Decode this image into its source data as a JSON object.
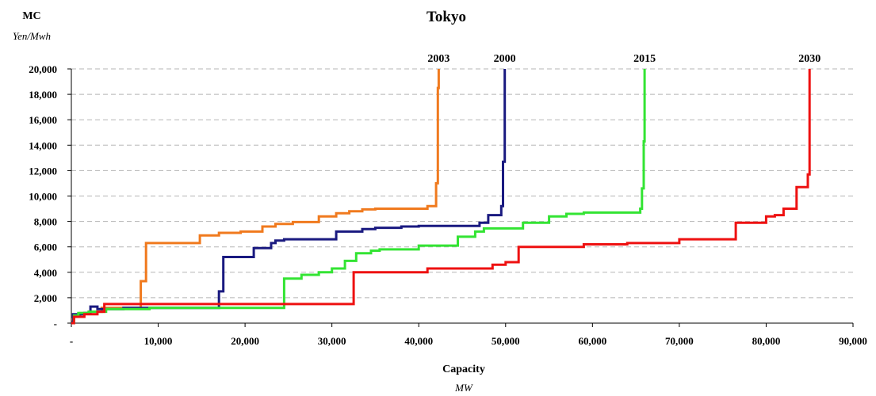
{
  "chart_data": {
    "type": "line",
    "title": "Tokyo",
    "xlabel": "Capacity",
    "xunit": "MW",
    "ylabel": "MC",
    "yunit": "Yen/Mwh",
    "xlim": [
      0,
      90000
    ],
    "ylim": [
      0,
      20000
    ],
    "xticks": [
      0,
      10000,
      20000,
      30000,
      40000,
      50000,
      60000,
      70000,
      80000,
      90000
    ],
    "xtick_labels": [
      "-",
      "10,000",
      "20,000",
      "30,000",
      "40,000",
      "50,000",
      "60,000",
      "70,000",
      "80,000",
      "90,000"
    ],
    "yticks": [
      0,
      2000,
      4000,
      6000,
      8000,
      10000,
      12000,
      14000,
      16000,
      18000,
      20000
    ],
    "ytick_labels": [
      "-",
      "2,000",
      "4,000",
      "6,000",
      "8,000",
      "10,000",
      "12,000",
      "14,000",
      "16,000",
      "18,000",
      "20,000"
    ],
    "grid": "horizontal dashed",
    "series": [
      {
        "name": "2003",
        "color": "#f07a1e",
        "points": [
          [
            0,
            300
          ],
          [
            300,
            300
          ],
          [
            300,
            600
          ],
          [
            1000,
            600
          ],
          [
            1000,
            800
          ],
          [
            2000,
            800
          ],
          [
            2000,
            900
          ],
          [
            3500,
            900
          ],
          [
            3500,
            1200
          ],
          [
            8000,
            1200
          ],
          [
            8000,
            3300
          ],
          [
            8600,
            3300
          ],
          [
            8600,
            6300
          ],
          [
            14800,
            6300
          ],
          [
            14800,
            6900
          ],
          [
            17000,
            6900
          ],
          [
            17000,
            7100
          ],
          [
            19500,
            7100
          ],
          [
            19500,
            7200
          ],
          [
            22000,
            7200
          ],
          [
            22000,
            7600
          ],
          [
            23500,
            7600
          ],
          [
            23500,
            7800
          ],
          [
            25500,
            7800
          ],
          [
            25500,
            7950
          ],
          [
            28500,
            7950
          ],
          [
            28500,
            8400
          ],
          [
            30500,
            8400
          ],
          [
            30500,
            8650
          ],
          [
            32000,
            8650
          ],
          [
            32000,
            8800
          ],
          [
            33500,
            8800
          ],
          [
            33500,
            8950
          ],
          [
            35000,
            8950
          ],
          [
            35000,
            9000
          ],
          [
            41000,
            9000
          ],
          [
            41000,
            9200
          ],
          [
            42000,
            9200
          ],
          [
            42000,
            11000
          ],
          [
            42200,
            11000
          ],
          [
            42200,
            18500
          ],
          [
            42300,
            18500
          ],
          [
            42300,
            20000
          ]
        ]
      },
      {
        "name": "2000",
        "color": "#1a1a80",
        "points": [
          [
            0,
            0
          ],
          [
            200,
            0
          ],
          [
            200,
            700
          ],
          [
            1500,
            700
          ],
          [
            1500,
            800
          ],
          [
            2200,
            800
          ],
          [
            2200,
            1300
          ],
          [
            3000,
            1300
          ],
          [
            3000,
            1100
          ],
          [
            6000,
            1100
          ],
          [
            6000,
            1200
          ],
          [
            17000,
            1200
          ],
          [
            17000,
            2500
          ],
          [
            17500,
            2500
          ],
          [
            17500,
            5200
          ],
          [
            21000,
            5200
          ],
          [
            21000,
            5900
          ],
          [
            23000,
            5900
          ],
          [
            23000,
            6300
          ],
          [
            23500,
            6300
          ],
          [
            23500,
            6500
          ],
          [
            24500,
            6500
          ],
          [
            24500,
            6600
          ],
          [
            30500,
            6600
          ],
          [
            30500,
            7200
          ],
          [
            33500,
            7200
          ],
          [
            33500,
            7400
          ],
          [
            35000,
            7400
          ],
          [
            35000,
            7500
          ],
          [
            38000,
            7500
          ],
          [
            38000,
            7600
          ],
          [
            40000,
            7600
          ],
          [
            40000,
            7650
          ],
          [
            47000,
            7650
          ],
          [
            47000,
            7900
          ],
          [
            48000,
            7900
          ],
          [
            48000,
            8500
          ],
          [
            49500,
            8500
          ],
          [
            49500,
            9200
          ],
          [
            49700,
            9200
          ],
          [
            49700,
            12700
          ],
          [
            49900,
            12700
          ],
          [
            49900,
            20000
          ]
        ]
      },
      {
        "name": "2015",
        "color": "#33e433",
        "points": [
          [
            0,
            0
          ],
          [
            300,
            0
          ],
          [
            300,
            600
          ],
          [
            800,
            600
          ],
          [
            800,
            800
          ],
          [
            2000,
            800
          ],
          [
            2000,
            900
          ],
          [
            4000,
            900
          ],
          [
            4000,
            1100
          ],
          [
            9000,
            1100
          ],
          [
            9000,
            1200
          ],
          [
            24500,
            1200
          ],
          [
            24500,
            3500
          ],
          [
            26500,
            3500
          ],
          [
            26500,
            3800
          ],
          [
            28500,
            3800
          ],
          [
            28500,
            4000
          ],
          [
            30000,
            4000
          ],
          [
            30000,
            4300
          ],
          [
            31500,
            4300
          ],
          [
            31500,
            4900
          ],
          [
            32800,
            4900
          ],
          [
            32800,
            5500
          ],
          [
            34500,
            5500
          ],
          [
            34500,
            5700
          ],
          [
            35500,
            5700
          ],
          [
            35500,
            5800
          ],
          [
            40000,
            5800
          ],
          [
            40000,
            6100
          ],
          [
            44500,
            6100
          ],
          [
            44500,
            6800
          ],
          [
            46500,
            6800
          ],
          [
            46500,
            7200
          ],
          [
            47500,
            7200
          ],
          [
            47500,
            7450
          ],
          [
            52000,
            7450
          ],
          [
            52000,
            7900
          ],
          [
            55000,
            7900
          ],
          [
            55000,
            8400
          ],
          [
            57000,
            8400
          ],
          [
            57000,
            8600
          ],
          [
            59000,
            8600
          ],
          [
            59000,
            8700
          ],
          [
            65500,
            8700
          ],
          [
            65500,
            9000
          ],
          [
            65700,
            9000
          ],
          [
            65700,
            10600
          ],
          [
            65900,
            10600
          ],
          [
            65900,
            14300
          ],
          [
            66000,
            14300
          ],
          [
            66000,
            20000
          ]
        ]
      },
      {
        "name": "2030",
        "color": "#ee1111",
        "points": [
          [
            0,
            0
          ],
          [
            300,
            0
          ],
          [
            300,
            500
          ],
          [
            1500,
            500
          ],
          [
            1500,
            700
          ],
          [
            3000,
            700
          ],
          [
            3000,
            900
          ],
          [
            3800,
            900
          ],
          [
            3800,
            1500
          ],
          [
            32500,
            1500
          ],
          [
            32500,
            4000
          ],
          [
            41000,
            4000
          ],
          [
            41000,
            4300
          ],
          [
            48500,
            4300
          ],
          [
            48500,
            4600
          ],
          [
            50000,
            4600
          ],
          [
            50000,
            4800
          ],
          [
            51500,
            4800
          ],
          [
            51500,
            6000
          ],
          [
            59000,
            6000
          ],
          [
            59000,
            6200
          ],
          [
            64000,
            6200
          ],
          [
            64000,
            6300
          ],
          [
            70000,
            6300
          ],
          [
            70000,
            6600
          ],
          [
            76500,
            6600
          ],
          [
            76500,
            7900
          ],
          [
            80000,
            7900
          ],
          [
            80000,
            8400
          ],
          [
            81000,
            8400
          ],
          [
            81000,
            8500
          ],
          [
            82000,
            8500
          ],
          [
            82000,
            9000
          ],
          [
            83500,
            9000
          ],
          [
            83500,
            10700
          ],
          [
            84800,
            10700
          ],
          [
            84800,
            11700
          ],
          [
            85000,
            11700
          ],
          [
            85000,
            20000
          ]
        ]
      }
    ]
  }
}
